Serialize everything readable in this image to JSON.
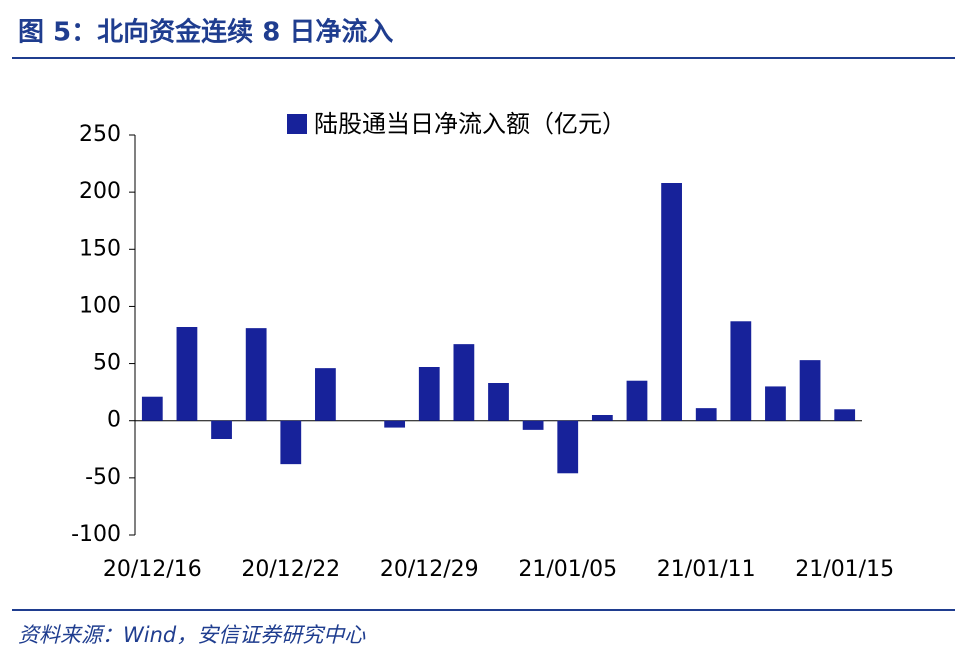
{
  "chart_data": {
    "type": "bar",
    "title": "图 5：北向资金连续 8 日净流入",
    "source": "资料来源：Wind，安信证券研究中心",
    "categories": [
      "20/12/16",
      null,
      null,
      null,
      "20/12/22",
      null,
      null,
      null,
      "20/12/29",
      null,
      null,
      null,
      "21/01/05",
      null,
      null,
      null,
      "21/01/11",
      null,
      null,
      null,
      "21/01/15"
    ],
    "series": [
      {
        "name": "陆股通当日净流入额（亿元）",
        "color": "#17229a",
        "values": [
          21,
          82,
          -16,
          81,
          -38,
          46,
          null,
          -6,
          47,
          67,
          33,
          -8,
          -46,
          5,
          35,
          208,
          11,
          87,
          30,
          53,
          10
        ]
      }
    ],
    "ylim": [
      -100,
      250
    ],
    "yticks": [
      -100,
      -50,
      0,
      50,
      100,
      150,
      200,
      250
    ],
    "legend": "top"
  }
}
